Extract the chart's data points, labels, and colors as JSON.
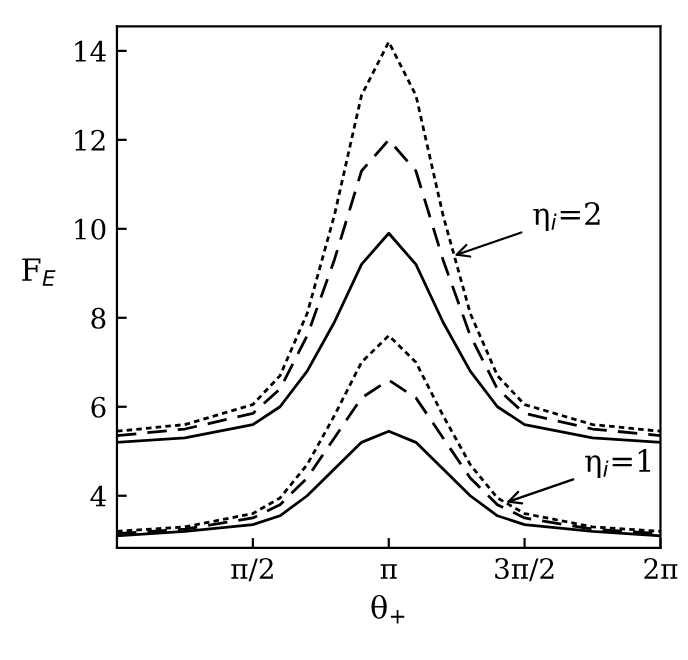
{
  "chart_data": {
    "type": "line",
    "xlabel": "θ$_{+}$",
    "ylabel": "F$_{E}$",
    "x": [
      0,
      0.785,
      1.571,
      1.885,
      2.199,
      2.513,
      2.827,
      3.142,
      3.456,
      3.77,
      4.084,
      4.398,
      4.712,
      5.498,
      6.283
    ],
    "series": [
      {
        "color": "#000000",
        "line_style": "solid",
        "values": [
          5.2,
          5.3,
          5.6,
          6.0,
          6.8,
          7.9,
          9.2,
          9.9,
          9.2,
          7.9,
          6.8,
          6.0,
          5.6,
          5.3,
          5.2
        ]
      },
      {
        "color": "#000000",
        "line_style": "dashed",
        "values": [
          5.35,
          5.5,
          5.85,
          6.4,
          7.6,
          9.3,
          11.3,
          12.0,
          11.3,
          9.3,
          7.6,
          6.4,
          5.85,
          5.5,
          5.35
        ]
      },
      {
        "color": "#000000",
        "line_style": "dotted",
        "values": [
          5.45,
          5.6,
          6.05,
          6.7,
          8.1,
          10.3,
          13.0,
          14.2,
          13.0,
          10.3,
          8.1,
          6.7,
          6.05,
          5.6,
          5.45
        ]
      },
      {
        "color": "#000000",
        "line_style": "solid",
        "values": [
          3.1,
          3.2,
          3.35,
          3.55,
          4.0,
          4.6,
          5.2,
          5.45,
          5.2,
          4.6,
          4.0,
          3.55,
          3.35,
          3.2,
          3.1
        ]
      },
      {
        "color": "#000000",
        "line_style": "dashed",
        "values": [
          3.15,
          3.25,
          3.5,
          3.8,
          4.4,
          5.3,
          6.2,
          6.6,
          6.2,
          5.3,
          4.4,
          3.8,
          3.5,
          3.25,
          3.15
        ]
      },
      {
        "color": "#000000",
        "line_style": "dotted",
        "values": [
          3.2,
          3.3,
          3.6,
          3.95,
          4.7,
          5.8,
          7.0,
          7.6,
          7.0,
          5.8,
          4.7,
          3.95,
          3.6,
          3.3,
          3.2
        ]
      }
    ],
    "xlim": [
      0,
      6.283
    ],
    "ylim": [
      2.83,
      14.55
    ],
    "xticks": [
      {
        "value": 1.571,
        "label": "π/2"
      },
      {
        "value": 3.142,
        "label": "π"
      },
      {
        "value": 4.712,
        "label": "3π/2"
      },
      {
        "value": 6.283,
        "label": "2π"
      }
    ],
    "yticks": [
      4,
      6,
      8,
      10,
      12,
      14
    ],
    "annotations": [
      {
        "text": "η$_{i}$=2",
        "x": 3.9,
        "y": 9.4
      },
      {
        "text": "η$_{i}$=1",
        "x": 4.5,
        "y": 3.85
      }
    ],
    "grid": false,
    "legend": false
  }
}
